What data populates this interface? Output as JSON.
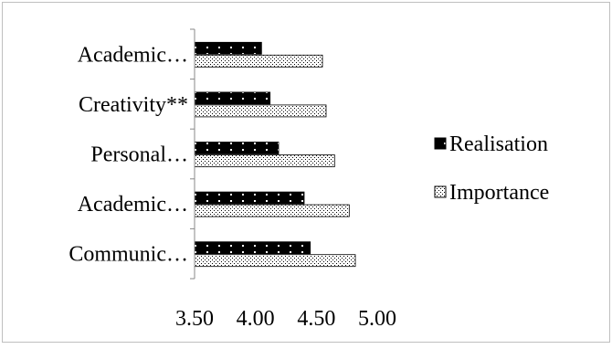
{
  "chart_data": {
    "type": "bar",
    "orientation": "horizontal",
    "categories": [
      "Communic…",
      "Academic…",
      "Personal…",
      "Creativity**",
      "Academic…"
    ],
    "series": [
      {
        "name": "Realisation",
        "values": [
          4.45,
          4.4,
          4.19,
          4.12,
          4.05
        ],
        "color": "#000000",
        "pattern": "black-with-white-dots"
      },
      {
        "name": "Importance",
        "values": [
          4.82,
          4.77,
          4.65,
          4.58,
          4.55
        ],
        "color": "#ffffff",
        "pattern": "white-with-black-dots"
      }
    ],
    "x_ticks": [
      "3.50",
      "4.00",
      "4.50",
      "5.00"
    ],
    "xlim": [
      3.5,
      5.0
    ],
    "grid": false,
    "legend_position": "right",
    "title": "",
    "xlabel": "",
    "ylabel": ""
  }
}
